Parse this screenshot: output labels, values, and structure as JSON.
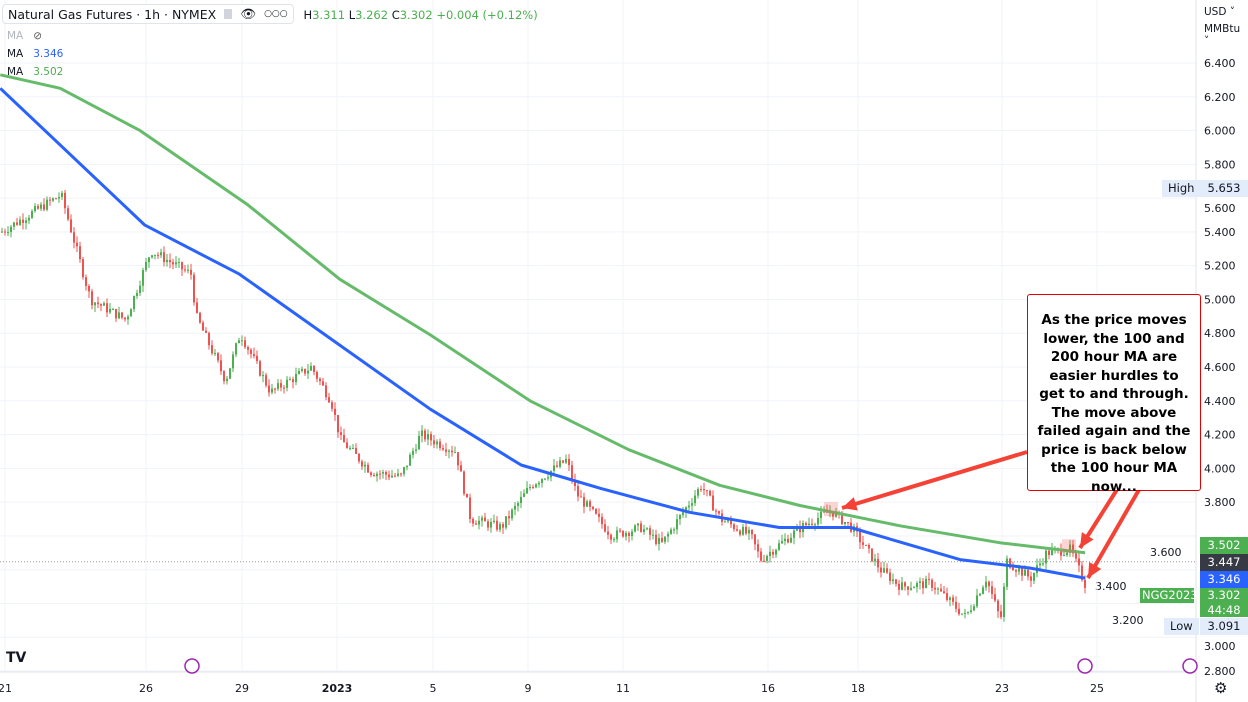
{
  "header": {
    "title": "Natural Gas Futures · 1h · NYMEX",
    "ohlc": {
      "h": "3.311",
      "l": "3.262",
      "c": "3.302",
      "change": "+0.004 (+0.12%)"
    },
    "ma_rows": [
      {
        "label": "MA",
        "value": "",
        "hidden": true
      },
      {
        "label": "MA",
        "value": "3.346",
        "color": "#2962ff"
      },
      {
        "label": "MA",
        "value": "3.502",
        "color": "#4caf50"
      }
    ]
  },
  "price_axis": {
    "currency": "USD",
    "unit": "MMBtu",
    "ticks": [
      "6.400",
      "6.200",
      "6.000",
      "5.800",
      "5.600",
      "5.400",
      "5.200",
      "5.000",
      "4.800",
      "4.600",
      "4.400",
      "4.200",
      "4.000",
      "3.800",
      "3.600",
      "3.400",
      "3.200",
      "3.000",
      "2.800"
    ]
  },
  "tags": {
    "ma200": "3.502",
    "crosshair": "3.447",
    "ma100": "3.346",
    "last": "3.302",
    "countdown": "44:48",
    "symbol": "NGG2023",
    "high_label": "High",
    "high": "5.653",
    "low_label": "Low",
    "low": "3.091"
  },
  "annotation": "As the price moves lower, the 100 and 200 hour MA are easier hurdles to get to and through.   The move above failed again and the price is back below the 100 hour MA now...",
  "colors": {
    "up": "#4caf50",
    "down": "#ef5350",
    "ma100": "#2962ff",
    "ma200": "#66bb6a",
    "annotation": "#e00000",
    "ma_tag_green": "#4caf50",
    "ma_tag_blue": "#2962ff"
  },
  "chart_data": {
    "type": "candlestick",
    "ylim": [
      2.8,
      6.5
    ],
    "x_ticks": [
      {
        "label": "21",
        "date": "2022-12-21"
      },
      {
        "label": "26",
        "date": "2022-12-26"
      },
      {
        "label": "29",
        "date": "2022-12-29"
      },
      {
        "label": "2023",
        "date": "2023-01-02"
      },
      {
        "label": "5",
        "date": "2023-01-05"
      },
      {
        "label": "9",
        "date": "2023-01-09"
      },
      {
        "label": "11",
        "date": "2023-01-11"
      },
      {
        "label": "16",
        "date": "2023-01-16"
      },
      {
        "label": "18",
        "date": "2023-01-18"
      },
      {
        "label": "23",
        "date": "2023-01-23"
      },
      {
        "label": "25",
        "date": "2023-01-25"
      }
    ],
    "price_path": [
      [
        "2022-12-20T20:00",
        5.4
      ],
      [
        "2022-12-22T23:00",
        5.62
      ],
      [
        "2022-12-24T00:00",
        5.0
      ],
      [
        "2022-12-25T06:00",
        4.88
      ],
      [
        "2022-12-26T03:00",
        5.29
      ],
      [
        "2022-12-27T09:00",
        5.15
      ],
      [
        "2022-12-27T13:00",
        4.9
      ],
      [
        "2022-12-28T11:00",
        4.52
      ],
      [
        "2022-12-28T22:00",
        4.8
      ],
      [
        "2022-12-30T04:00",
        4.45
      ],
      [
        "2022-12-31T21:00",
        4.6
      ],
      [
        "2023-01-01T17:00",
        4.4
      ],
      [
        "2023-01-02T02:00",
        4.17
      ],
      [
        "2023-01-03T01:00",
        3.98
      ],
      [
        "2023-01-03T23:00",
        3.95
      ],
      [
        "2023-01-04T14:00",
        4.2
      ],
      [
        "2023-01-05T22:00",
        4.1
      ],
      [
        "2023-01-06T13:00",
        3.7
      ],
      [
        "2023-01-07T20:00",
        3.65
      ],
      [
        "2023-01-09T01:00",
        3.9
      ],
      [
        "2023-01-09T19:00",
        4.05
      ],
      [
        "2023-01-10T00:00",
        3.85
      ],
      [
        "2023-01-10T18:00",
        3.6
      ],
      [
        "2023-01-11T14:00",
        3.65
      ],
      [
        "2023-01-12T07:00",
        3.55
      ],
      [
        "2023-01-13T16:00",
        3.9
      ],
      [
        "2023-01-14T08:00",
        3.7
      ],
      [
        "2023-01-15T09:00",
        3.6
      ],
      [
        "2023-01-15T17:00",
        3.46
      ],
      [
        "2023-01-16T17:00",
        3.65
      ],
      [
        "2023-01-17T09:00",
        3.75
      ],
      [
        "2023-01-17T20:00",
        3.65
      ],
      [
        "2023-01-18T18:00",
        3.4
      ],
      [
        "2023-01-19T11:00",
        3.3
      ],
      [
        "2023-01-20T12:00",
        3.32
      ],
      [
        "2023-01-21T17:00",
        3.12
      ],
      [
        "2023-01-22T10:00",
        3.35
      ],
      [
        "2023-01-22T22:00",
        3.1
      ],
      [
        "2023-01-23T02:00",
        3.45
      ],
      [
        "2023-01-23T14:00",
        3.35
      ],
      [
        "2023-01-23T22:00",
        3.5
      ],
      [
        "2023-01-24T10:00",
        3.52
      ],
      [
        "2023-01-24T18:00",
        3.3
      ]
    ],
    "series": [
      {
        "name": "MA 100",
        "points": [
          [
            "2022-12-20T20:00",
            6.25
          ],
          [
            "2022-12-25T23:00",
            5.44
          ],
          [
            "2022-12-28T22:00",
            5.15
          ],
          [
            "2023-01-02T02:00",
            4.73
          ],
          [
            "2023-01-04T22:00",
            4.35
          ],
          [
            "2023-01-08T17:00",
            4.02
          ],
          [
            "2023-01-10T13:00",
            3.88
          ],
          [
            "2023-01-13T07:00",
            3.74
          ],
          [
            "2023-01-16T06:00",
            3.65
          ],
          [
            "2023-01-17T20:00",
            3.65
          ],
          [
            "2023-01-21T13:00",
            3.46
          ],
          [
            "2023-01-23T14:00",
            3.41
          ],
          [
            "2023-01-24T18:00",
            3.35
          ]
        ]
      },
      {
        "name": "MA 200",
        "points": [
          [
            "2022-12-20T20:00",
            6.33
          ],
          [
            "2022-12-22T23:00",
            6.25
          ],
          [
            "2022-12-25T19:00",
            6.0
          ],
          [
            "2022-12-29T06:00",
            5.56
          ],
          [
            "2023-01-02T02:00",
            5.12
          ],
          [
            "2023-01-04T22:00",
            4.79
          ],
          [
            "2023-01-09T01:00",
            4.4
          ],
          [
            "2023-01-11T05:00",
            4.11
          ],
          [
            "2023-01-14T08:00",
            3.9
          ],
          [
            "2023-01-16T17:00",
            3.78
          ],
          [
            "2023-01-19T11:00",
            3.66
          ],
          [
            "2023-01-22T22:00",
            3.56
          ],
          [
            "2023-01-24T18:00",
            3.5
          ]
        ]
      }
    ],
    "grid": true
  }
}
